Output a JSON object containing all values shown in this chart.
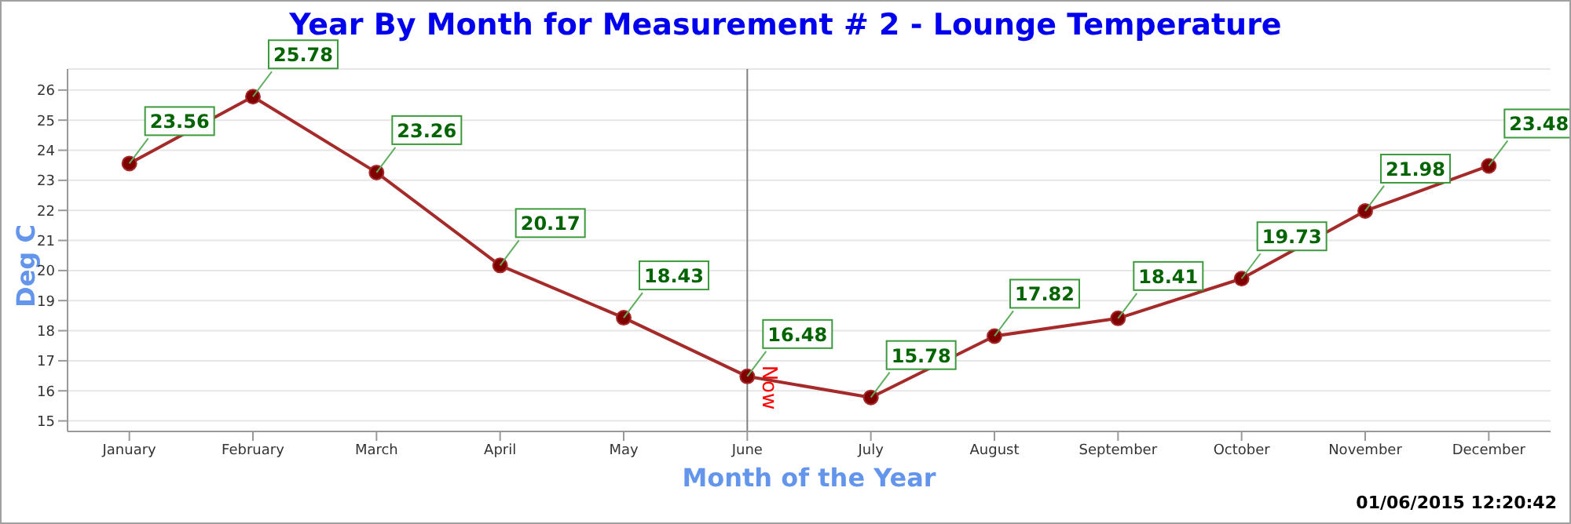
{
  "chart_data": {
    "type": "line",
    "title": "Year By Month for Measurement # 2 - Lounge Temperature",
    "xlabel": "Month of the Year",
    "ylabel": "Deg C",
    "categories": [
      "January",
      "February",
      "March",
      "April",
      "May",
      "June",
      "July",
      "August",
      "September",
      "October",
      "November",
      "December"
    ],
    "series": [
      {
        "color": "#a52a2a",
        "values": [
          23.56,
          25.78,
          23.26,
          20.17,
          18.43,
          16.48,
          15.78,
          17.82,
          18.41,
          19.73,
          21.98,
          23.48
        ]
      }
    ],
    "ylim": [
      14.65,
      26.7
    ],
    "yticks": [
      15,
      16,
      17,
      18,
      19,
      20,
      21,
      22,
      23,
      24,
      25,
      26
    ],
    "grid": "y",
    "marker": "circle",
    "line_style": "solid",
    "data_labels": true,
    "ref_lines": [
      {
        "axis": "x",
        "value": "June",
        "label": "Now",
        "color": "#808080"
      }
    ],
    "annotations": [
      "01/06/2015 12:20:42"
    ]
  }
}
